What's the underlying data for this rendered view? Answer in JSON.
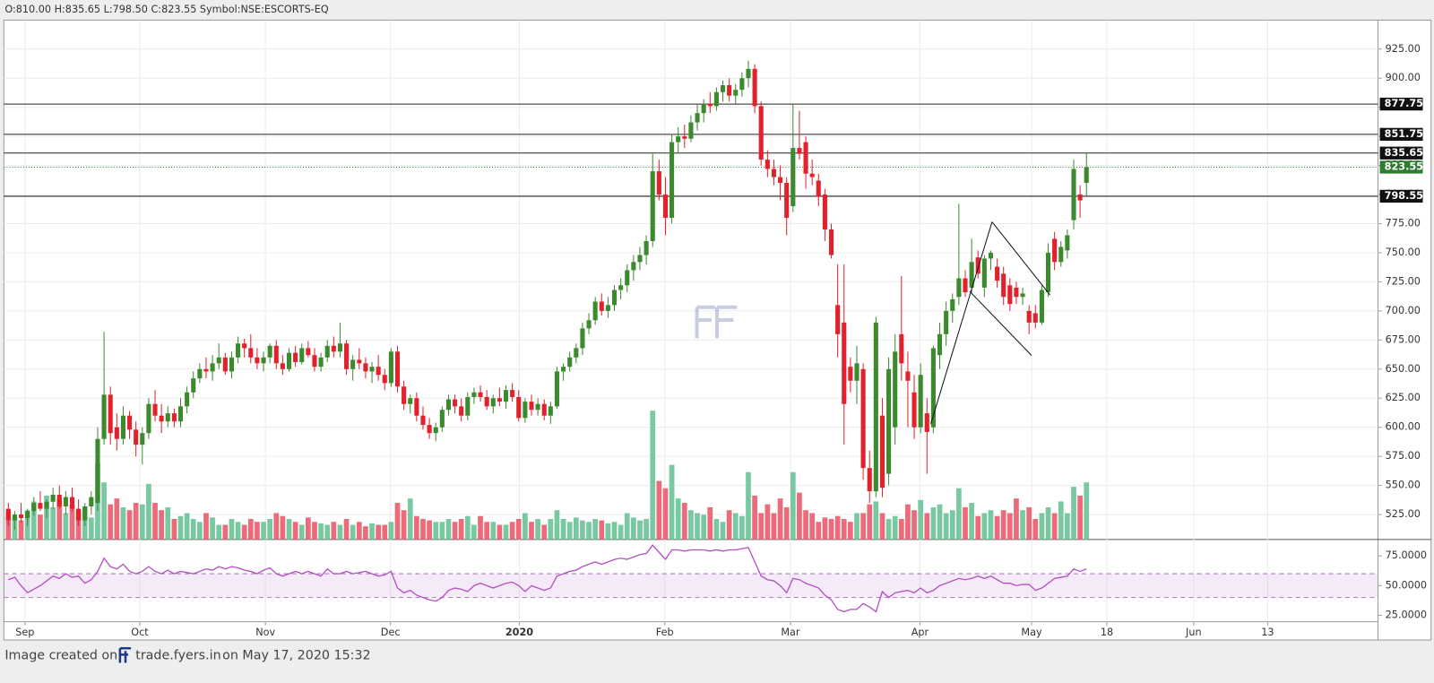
{
  "chart_data": {
    "type": "candlestick",
    "header": "O:810.00 H:835.65 L:798.50 C:823.55 Symbol:NSE:ESCORTS-EQ",
    "footer": {
      "prefix": "Image created on",
      "site": "trade.fyers.in",
      "suffix": "on May 17, 2020 15:32"
    },
    "up_color": "#3c8a2e",
    "down_color": "#e3212d",
    "volume_up_color": "#78c9a1",
    "volume_down_color": "#ec6a79",
    "rsi_color": "#b44fc4",
    "ylim": [
      503.6,
      949.9
    ],
    "yticks": [
      {
        "value": 525,
        "label": "525.00"
      },
      {
        "value": 550,
        "label": "550.00"
      },
      {
        "value": 575,
        "label": "575.00"
      },
      {
        "value": 600,
        "label": "600.00"
      },
      {
        "value": 625,
        "label": "625.00"
      },
      {
        "value": 650,
        "label": "650.00"
      },
      {
        "value": 675,
        "label": "675.00"
      },
      {
        "value": 700,
        "label": "700.00"
      },
      {
        "value": 725,
        "label": "725.00"
      },
      {
        "value": 750,
        "label": "750.00"
      },
      {
        "value": 775,
        "label": "775.00"
      },
      {
        "value": 800,
        "label": "800.00"
      },
      {
        "value": 825,
        "label": "825.00"
      },
      {
        "value": 850,
        "label": "850.00"
      },
      {
        "value": 875,
        "label": "875.00"
      },
      {
        "value": 900,
        "label": "900.00"
      },
      {
        "value": 925,
        "label": "925.00"
      }
    ],
    "xlim": [
      -0.7,
      214.7
    ],
    "xticks": [
      {
        "value": 2.6,
        "label": "Sep"
      },
      {
        "value": 20.6,
        "label": "Oct"
      },
      {
        "value": 40.3,
        "label": "Nov"
      },
      {
        "value": 59.9,
        "label": "Dec"
      },
      {
        "value": 80.1,
        "label": "2020"
      },
      {
        "value": 102.9,
        "label": "Feb"
      },
      {
        "value": 122.6,
        "label": "Mar"
      },
      {
        "value": 142.9,
        "label": "Apr"
      },
      {
        "value": 160.4,
        "label": "May"
      },
      {
        "value": 172.2,
        "label": "18"
      },
      {
        "value": 185.8,
        "label": "Jun"
      },
      {
        "value": 197.4,
        "label": "13"
      }
    ],
    "levels": [
      877.75,
      851.75,
      835.65,
      798.55
    ],
    "last_price": 823.55,
    "last_price_color": "#2e7d32",
    "trendlines": [
      [
        [
          144.6,
          603
        ],
        [
          154.2,
          776.5
        ]
      ],
      [
        [
          150.7,
          716.8
        ],
        [
          160.4,
          661.7
        ]
      ],
      [
        [
          154.2,
          776.5
        ],
        [
          163.3,
          713.6
        ]
      ]
    ],
    "candles": [
      [
        530,
        535,
        515,
        520
      ],
      [
        520,
        528,
        512,
        525
      ],
      [
        525,
        535,
        518,
        522
      ],
      [
        522,
        530,
        515,
        528
      ],
      [
        528,
        540,
        524,
        535
      ],
      [
        535,
        545,
        528,
        530
      ],
      [
        530,
        538,
        522,
        536
      ],
      [
        536,
        548,
        530,
        542
      ],
      [
        542,
        550,
        530,
        532
      ],
      [
        532,
        545,
        525,
        540
      ],
      [
        540,
        548,
        528,
        530
      ],
      [
        530,
        538,
        515,
        520
      ],
      [
        520,
        535,
        515,
        532
      ],
      [
        532,
        545,
        525,
        540
      ],
      [
        535,
        600,
        528,
        590
      ],
      [
        590,
        682,
        585,
        628
      ],
      [
        628,
        635,
        585,
        595
      ],
      [
        600,
        612,
        580,
        590
      ],
      [
        590,
        618,
        585,
        610
      ],
      [
        610,
        614,
        590,
        598
      ],
      [
        598,
        605,
        575,
        585
      ],
      [
        585,
        600,
        568,
        595
      ],
      [
        595,
        625,
        590,
        620
      ],
      [
        620,
        632,
        605,
        610
      ],
      [
        610,
        620,
        595,
        605
      ],
      [
        605,
        618,
        600,
        612
      ],
      [
        612,
        616,
        600,
        605
      ],
      [
        605,
        625,
        600,
        618
      ],
      [
        618,
        635,
        612,
        630
      ],
      [
        630,
        648,
        625,
        642
      ],
      [
        642,
        655,
        638,
        650
      ],
      [
        650,
        660,
        642,
        648
      ],
      [
        648,
        662,
        640,
        655
      ],
      [
        655,
        672,
        650,
        660
      ],
      [
        660,
        664,
        645,
        648
      ],
      [
        648,
        665,
        642,
        660
      ],
      [
        660,
        678,
        655,
        672
      ],
      [
        672,
        676,
        660,
        668
      ],
      [
        668,
        680,
        655,
        660
      ],
      [
        660,
        668,
        650,
        655
      ],
      [
        655,
        665,
        648,
        660
      ],
      [
        660,
        672,
        655,
        670
      ],
      [
        670,
        675,
        650,
        655
      ],
      [
        655,
        662,
        645,
        650
      ],
      [
        650,
        668,
        648,
        664
      ],
      [
        664,
        670,
        652,
        656
      ],
      [
        656,
        672,
        654,
        668
      ],
      [
        668,
        674,
        660,
        662
      ],
      [
        662,
        668,
        648,
        652
      ],
      [
        652,
        664,
        648,
        660
      ],
      [
        660,
        675,
        656,
        670
      ],
      [
        670,
        678,
        660,
        665
      ],
      [
        665,
        690,
        660,
        672
      ],
      [
        672,
        675,
        645,
        650
      ],
      [
        650,
        662,
        640,
        658
      ],
      [
        658,
        668,
        650,
        655
      ],
      [
        655,
        660,
        642,
        648
      ],
      [
        648,
        656,
        638,
        652
      ],
      [
        652,
        662,
        640,
        645
      ],
      [
        645,
        650,
        632,
        638
      ],
      [
        638,
        668,
        635,
        665
      ],
      [
        665,
        670,
        630,
        635
      ],
      [
        635,
        640,
        615,
        620
      ],
      [
        620,
        628,
        612,
        625
      ],
      [
        625,
        630,
        605,
        610
      ],
      [
        610,
        618,
        598,
        602
      ],
      [
        602,
        608,
        590,
        595
      ],
      [
        595,
        604,
        588,
        600
      ],
      [
        600,
        618,
        596,
        615
      ],
      [
        615,
        628,
        610,
        624
      ],
      [
        624,
        628,
        612,
        618
      ],
      [
        618,
        625,
        605,
        610
      ],
      [
        610,
        630,
        606,
        626
      ],
      [
        626,
        634,
        620,
        630
      ],
      [
        630,
        636,
        622,
        626
      ],
      [
        626,
        632,
        615,
        618
      ],
      [
        618,
        628,
        612,
        625
      ],
      [
        625,
        634,
        618,
        622
      ],
      [
        622,
        636,
        616,
        632
      ],
      [
        632,
        638,
        622,
        626
      ],
      [
        626,
        632,
        605,
        608
      ],
      [
        608,
        625,
        604,
        622
      ],
      [
        622,
        628,
        610,
        615
      ],
      [
        615,
        625,
        610,
        620
      ],
      [
        620,
        624,
        606,
        610
      ],
      [
        610,
        622,
        603,
        618
      ],
      [
        618,
        652,
        616,
        648
      ],
      [
        648,
        655,
        640,
        652
      ],
      [
        652,
        665,
        648,
        660
      ],
      [
        660,
        672,
        655,
        668
      ],
      [
        668,
        690,
        662,
        685
      ],
      [
        685,
        698,
        680,
        692
      ],
      [
        692,
        712,
        688,
        708
      ],
      [
        708,
        715,
        696,
        700
      ],
      [
        700,
        712,
        694,
        705
      ],
      [
        705,
        722,
        700,
        718
      ],
      [
        718,
        728,
        710,
        722
      ],
      [
        722,
        740,
        716,
        735
      ],
      [
        735,
        748,
        726,
        742
      ],
      [
        742,
        755,
        735,
        748
      ],
      [
        748,
        765,
        740,
        760
      ],
      [
        760,
        835,
        755,
        820
      ],
      [
        820,
        830,
        795,
        800
      ],
      [
        800,
        815,
        765,
        780
      ],
      [
        780,
        852,
        775,
        845
      ],
      [
        845,
        858,
        835,
        850
      ],
      [
        850,
        860,
        840,
        848
      ],
      [
        848,
        868,
        845,
        862
      ],
      [
        862,
        878,
        855,
        870
      ],
      [
        870,
        882,
        862,
        878
      ],
      [
        878,
        888,
        870,
        876
      ],
      [
        876,
        892,
        872,
        888
      ],
      [
        888,
        898,
        880,
        894
      ],
      [
        894,
        900,
        880,
        885
      ],
      [
        885,
        895,
        878,
        890
      ],
      [
        890,
        905,
        884,
        900
      ],
      [
        900,
        915,
        892,
        908
      ],
      [
        908,
        912,
        870,
        876
      ],
      [
        876,
        880,
        825,
        830
      ],
      [
        830,
        838,
        815,
        822
      ],
      [
        822,
        830,
        808,
        815
      ],
      [
        815,
        825,
        795,
        810
      ],
      [
        810,
        815,
        765,
        780
      ],
      [
        790,
        878,
        785,
        840
      ],
      [
        840,
        872,
        830,
        835
      ],
      [
        845,
        850,
        805,
        818
      ],
      [
        818,
        830,
        808,
        815
      ],
      [
        812,
        818,
        790,
        798
      ],
      [
        800,
        805,
        760,
        770
      ],
      [
        770,
        775,
        745,
        748
      ],
      [
        705,
        740,
        660,
        680
      ],
      [
        690,
        740,
        585,
        620
      ],
      [
        652,
        660,
        630,
        640
      ],
      [
        640,
        670,
        620,
        655
      ],
      [
        650,
        655,
        555,
        565
      ],
      [
        565,
        580,
        535,
        545
      ],
      [
        545,
        695,
        540,
        690
      ],
      [
        610,
        625,
        540,
        548
      ],
      [
        560,
        660,
        550,
        650
      ],
      [
        600,
        680,
        585,
        665
      ],
      [
        680,
        730,
        640,
        655
      ],
      [
        648,
        665,
        600,
        640
      ],
      [
        630,
        645,
        590,
        600
      ],
      [
        600,
        655,
        595,
        645
      ],
      [
        612,
        625,
        560,
        596
      ],
      [
        600,
        670,
        595,
        668
      ],
      [
        662,
        690,
        650,
        680
      ],
      [
        680,
        708,
        670,
        700
      ],
      [
        700,
        715,
        690,
        710
      ],
      [
        712,
        792,
        705,
        728
      ],
      [
        728,
        735,
        712,
        716
      ],
      [
        720,
        762,
        715,
        742
      ],
      [
        746,
        752,
        728,
        732
      ],
      [
        720,
        748,
        712,
        745
      ],
      [
        745,
        752,
        735,
        750
      ],
      [
        738,
        745,
        720,
        726
      ],
      [
        732,
        738,
        705,
        712
      ],
      [
        722,
        728,
        700,
        706
      ],
      [
        720,
        725,
        706,
        712
      ],
      [
        712,
        720,
        705,
        715
      ],
      [
        700,
        705,
        680,
        690
      ],
      [
        698,
        705,
        685,
        690
      ],
      [
        690,
        722,
        688,
        718
      ],
      [
        716,
        758,
        712,
        750
      ],
      [
        762,
        768,
        735,
        742
      ],
      [
        742,
        760,
        738,
        755
      ],
      [
        752,
        770,
        745,
        765
      ],
      [
        778,
        830,
        770,
        822
      ],
      [
        800,
        808,
        780,
        795
      ],
      [
        810,
        835.65,
        798.5,
        823.55
      ]
    ],
    "volume_lim": [
      0,
      100
    ],
    "volume": [
      19,
      15,
      13,
      20,
      26,
      17,
      30,
      22,
      28,
      18,
      24,
      20,
      22,
      15,
      52,
      39,
      24,
      28,
      22,
      20,
      25,
      24,
      38,
      25,
      20,
      22,
      14,
      16,
      18,
      14,
      12,
      18,
      15,
      10,
      10,
      14,
      12,
      10,
      14,
      12,
      12,
      14,
      18,
      16,
      14,
      12,
      10,
      15,
      12,
      11,
      10,
      12,
      10,
      14,
      10,
      12,
      9,
      11,
      10,
      10,
      12,
      25,
      20,
      28,
      16,
      14,
      13,
      12,
      12,
      14,
      12,
      14,
      16,
      10,
      16,
      12,
      12,
      10,
      10,
      12,
      14,
      18,
      12,
      14,
      10,
      14,
      20,
      14,
      12,
      15,
      13,
      12,
      14,
      13,
      11,
      12,
      10,
      18,
      15,
      13,
      14,
      88,
      40,
      35,
      51,
      28,
      25,
      20,
      18,
      17,
      22,
      14,
      12,
      20,
      18,
      16,
      46,
      30,
      18,
      24,
      18,
      28,
      22,
      46,
      32,
      20,
      18,
      12,
      15,
      14,
      16,
      14,
      12,
      18,
      18,
      24,
      26,
      18,
      14,
      16,
      14,
      24,
      20,
      27,
      18,
      22,
      24,
      18,
      20,
      35,
      22,
      25,
      16,
      18,
      20,
      16,
      20,
      18,
      28,
      20,
      22,
      14,
      18,
      22,
      18,
      26,
      18,
      36,
      30,
      39
    ],
    "rsi_ylim": [
      19.6,
      88.8
    ],
    "rsi_yticks": [
      {
        "value": 25,
        "label": "25.0000"
      },
      {
        "value": 50,
        "label": "50.0000"
      },
      {
        "value": 75,
        "label": "75.0000"
      }
    ],
    "rsi_band": [
      40,
      60
    ],
    "rsi": [
      55,
      57,
      50,
      44,
      47,
      50,
      54,
      58,
      56,
      60,
      57,
      58,
      52,
      55,
      62,
      73,
      66,
      64,
      68,
      62,
      60,
      62,
      66,
      62,
      60,
      63,
      60,
      62,
      61,
      60,
      62,
      64,
      63,
      66,
      64,
      66,
      65,
      63,
      62,
      60,
      63,
      65,
      60,
      58,
      60,
      62,
      60,
      62,
      60,
      58,
      64,
      60,
      60,
      62,
      60,
      61,
      62,
      60,
      58,
      59,
      62,
      48,
      44,
      46,
      42,
      40,
      38,
      37,
      40,
      46,
      48,
      47,
      45,
      50,
      52,
      50,
      48,
      50,
      52,
      53,
      50,
      45,
      50,
      48,
      46,
      48,
      58,
      60,
      62,
      63,
      66,
      68,
      70,
      68,
      70,
      72,
      73,
      72,
      74,
      76,
      77,
      84,
      78,
      72,
      80,
      80,
      79,
      80,
      80,
      80,
      79,
      80,
      79,
      80,
      80,
      81,
      82,
      70,
      58,
      55,
      54,
      50,
      44,
      56,
      55,
      52,
      50,
      48,
      42,
      38,
      30,
      28,
      30,
      30,
      35,
      32,
      28,
      45,
      40,
      44,
      45,
      46,
      44,
      48,
      44,
      46,
      50,
      52,
      54,
      56,
      55,
      56,
      58,
      56,
      58,
      55,
      52,
      52,
      50,
      51,
      51,
      46,
      48,
      52,
      56,
      57,
      58,
      64,
      62,
      64
    ]
  }
}
